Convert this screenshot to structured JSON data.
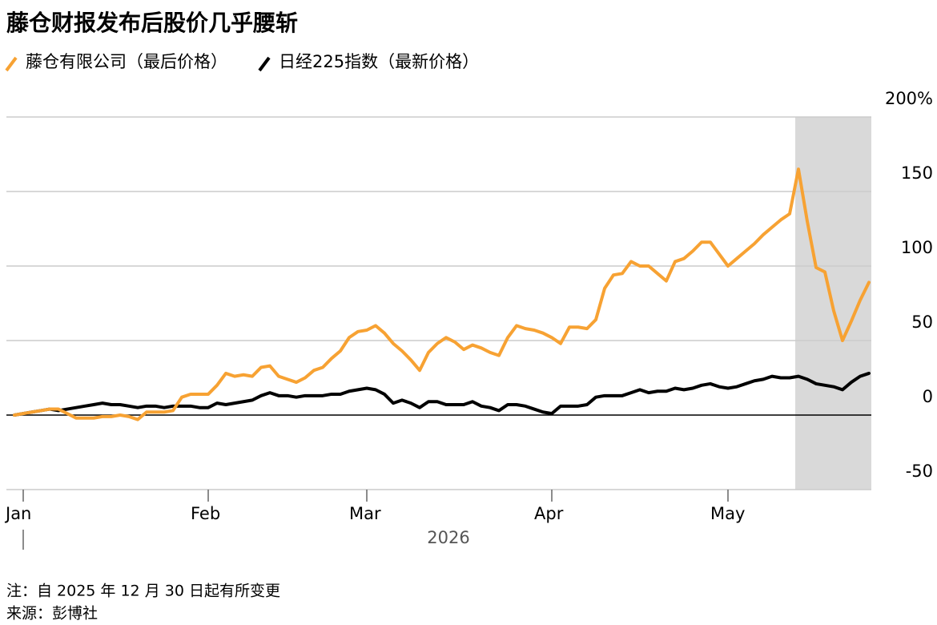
{
  "chart_data": {
    "type": "line",
    "title": "藤仓财报发布后股价几乎腰斩",
    "x_group_label": "2026",
    "notes": [
      "注：自 2025 年 12 月 30 日起有所变更",
      "来源：彭博社"
    ],
    "categories": [
      null,
      "Jan",
      null,
      null,
      null,
      null,
      null,
      null,
      null,
      null,
      null,
      null,
      null,
      null,
      null,
      null,
      null,
      null,
      null,
      null,
      null,
      null,
      "Feb",
      null,
      null,
      null,
      null,
      null,
      null,
      null,
      null,
      null,
      null,
      null,
      null,
      null,
      null,
      null,
      null,
      null,
      "Mar",
      null,
      null,
      null,
      null,
      null,
      null,
      null,
      null,
      null,
      null,
      null,
      null,
      null,
      null,
      null,
      null,
      null,
      null,
      null,
      null,
      "Apr",
      null,
      null,
      null,
      null,
      null,
      null,
      null,
      null,
      null,
      null,
      null,
      null,
      null,
      null,
      null,
      null,
      null,
      null,
      null,
      "May",
      null,
      null,
      null,
      null,
      null,
      null,
      null,
      null,
      null,
      null,
      null,
      null,
      null,
      null,
      null,
      null
    ],
    "series": [
      {
        "name": "藤仓有限公司（最后价格）",
        "color": "#f7a233",
        "values": [
          0,
          1,
          2,
          3,
          4,
          4,
          1,
          -2,
          -2,
          -2,
          -1,
          -1,
          0,
          -1,
          -3,
          2,
          2,
          2,
          3,
          12,
          14,
          14,
          14,
          20,
          28,
          26,
          27,
          26,
          32,
          33,
          26,
          24,
          22,
          25,
          30,
          32,
          38,
          43,
          52,
          56,
          57,
          60,
          55,
          48,
          43,
          37,
          30,
          42,
          48,
          52,
          49,
          44,
          47,
          45,
          42,
          40,
          52,
          60,
          58,
          57,
          55,
          52,
          48,
          59,
          59,
          58,
          64,
          85,
          94,
          95,
          103,
          100,
          100,
          95,
          90,
          103,
          105,
          110,
          116,
          116,
          108,
          100,
          105,
          110,
          115,
          121,
          126,
          131,
          135,
          165,
          130,
          99,
          96,
          70,
          50,
          63,
          77,
          89
        ]
      },
      {
        "name": "日经225指数（最新价格）",
        "color": "#000000",
        "values": [
          0,
          1,
          2,
          3,
          4,
          3,
          4,
          5,
          6,
          7,
          8,
          7,
          7,
          6,
          5,
          6,
          6,
          5,
          6,
          6,
          6,
          5,
          5,
          8,
          7,
          8,
          9,
          10,
          13,
          15,
          13,
          13,
          12,
          13,
          13,
          13,
          14,
          14,
          16,
          17,
          18,
          17,
          14,
          8,
          10,
          8,
          5,
          9,
          9,
          7,
          7,
          7,
          9,
          6,
          5,
          3,
          7,
          7,
          6,
          4,
          2,
          1,
          6,
          6,
          6,
          7,
          12,
          13,
          13,
          13,
          15,
          17,
          15,
          16,
          16,
          18,
          17,
          18,
          20,
          21,
          19,
          18,
          19,
          21,
          23,
          24,
          26,
          25,
          25,
          26,
          24,
          21,
          20,
          19,
          17,
          22,
          26,
          28
        ]
      }
    ],
    "shaded_range": [
      89,
      97
    ],
    "ylim": [
      -50,
      200
    ],
    "yticks": [
      {
        "value": 200,
        "label": "200%"
      },
      150,
      100,
      50,
      0,
      -50
    ],
    "grid": true
  }
}
